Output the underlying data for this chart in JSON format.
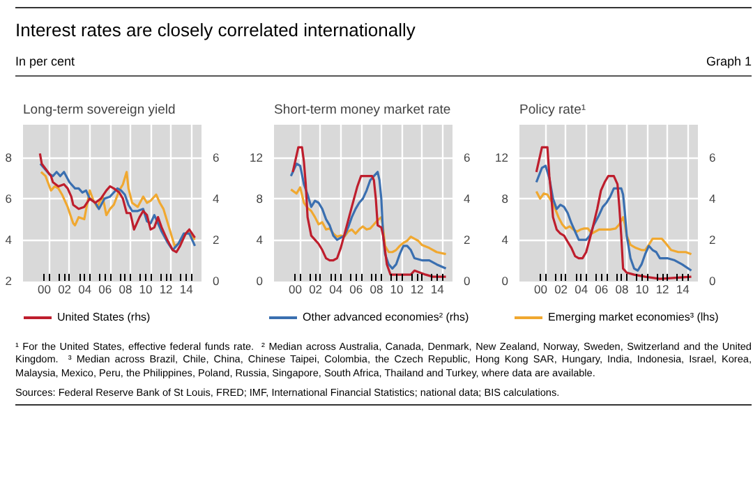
{
  "chart_data": [
    {
      "type": "other",
      "title": "Interest rates are closely correlated internationally",
      "subtitle": "In per cent",
      "annotations": [
        "Graph 1"
      ]
    },
    {
      "type": "line",
      "title": "Long-term sovereign yield",
      "xlim": [
        1997.9,
        2015.5
      ],
      "ylim": [
        2,
        9.6
      ],
      "y2lim": [
        0,
        7.6
      ],
      "yticks": [
        2,
        4,
        6,
        8
      ],
      "y2ticks": [
        0,
        2,
        4,
        6
      ],
      "grid": true,
      "legend": "bottom",
      "xticks": [
        {
          "value": 2000,
          "label": "00"
        },
        {
          "value": 2002,
          "label": "02"
        },
        {
          "value": 2004,
          "label": "04"
        },
        {
          "value": 2006,
          "label": "06"
        },
        {
          "value": 2008,
          "label": "08"
        },
        {
          "value": 2010,
          "label": "10"
        },
        {
          "value": 2012,
          "label": "12"
        },
        {
          "value": 2014,
          "label": "14"
        },
        {
          "value": 2000.5,
          "label": null
        },
        {
          "value": 2001.5,
          "label": null
        },
        {
          "value": 2002.5,
          "label": null
        },
        {
          "value": 2003.5,
          "label": null
        },
        {
          "value": 2004.5,
          "label": null
        },
        {
          "value": 2005.5,
          "label": null
        },
        {
          "value": 2006.5,
          "label": null
        },
        {
          "value": 2007.5,
          "label": null
        },
        {
          "value": 2008.5,
          "label": null
        },
        {
          "value": 2009.5,
          "label": null
        },
        {
          "value": 2010.5,
          "label": null
        },
        {
          "value": 2011.5,
          "label": null
        },
        {
          "value": 2012.5,
          "label": null
        },
        {
          "value": 2013.5,
          "label": null
        },
        {
          "value": 2014.5,
          "label": null
        }
      ],
      "series": [
        {
          "color": "#f0a830",
          "axis": "y",
          "x": [
            1999.68,
            2000.12,
            2000.66,
            2001.03,
            2001.39,
            2001.75,
            2002.3,
            2002.85,
            2003.03,
            2003.39,
            2003.94,
            2004.48,
            2004.85,
            2005.21,
            2005.75,
            2006.12,
            2006.48,
            2006.85,
            2007.39,
            2007.75,
            2008.12,
            2008.3,
            2008.66,
            2009.21,
            2009.75,
            2010.12,
            2010.48,
            2011.03,
            2011.39,
            2011.75,
            2012.3,
            2012.85,
            2013.21,
            2013.57,
            2014.12,
            2014.85
          ],
          "values": [
            7.3,
            7.1,
            6.4,
            6.6,
            6.5,
            6.2,
            5.6,
            4.8,
            4.7,
            5.1,
            5.0,
            6.4,
            5.9,
            5.6,
            6.1,
            5.2,
            5.5,
            5.7,
            6.4,
            6.7,
            7.3,
            6.5,
            5.8,
            5.6,
            6.1,
            5.8,
            5.9,
            6.2,
            5.8,
            5.5,
            4.6,
            3.7,
            3.8,
            4.0,
            4.4,
            4.0
          ]
        },
        {
          "color": "#3a6fb0",
          "axis": "y2",
          "x": [
            1999.61,
            2000.48,
            2000.85,
            2001.21,
            2001.57,
            2001.94,
            2002.48,
            2003.03,
            2003.39,
            2003.75,
            2004.12,
            2004.48,
            2005.03,
            2005.39,
            2005.94,
            2006.48,
            2006.85,
            2007.21,
            2007.57,
            2007.94,
            2008.3,
            2008.66,
            2009.21,
            2009.75,
            2010.12,
            2010.48,
            2010.85,
            2011.21,
            2011.57,
            2012.12,
            2012.66,
            2013.21,
            2013.75,
            2014.3,
            2014.85
          ],
          "values": [
            5.7,
            5.2,
            5.1,
            5.3,
            5.1,
            5.3,
            4.8,
            4.5,
            4.5,
            4.3,
            4.4,
            4.0,
            3.8,
            3.5,
            4.0,
            4.1,
            4.3,
            4.5,
            4.4,
            4.2,
            3.7,
            3.4,
            3.4,
            3.5,
            2.9,
            2.8,
            3.2,
            2.8,
            2.4,
            1.9,
            1.5,
            1.8,
            2.3,
            2.3,
            1.7
          ]
        },
        {
          "name": "United States (rhs)",
          "color": "#be1e2d",
          "axis": "y2",
          "x": [
            1999.57,
            1999.75,
            2000.66,
            2000.85,
            2001.39,
            2001.94,
            2002.3,
            2002.66,
            2002.85,
            2003.39,
            2003.94,
            2004.48,
            2005.03,
            2005.57,
            2006.12,
            2006.48,
            2006.85,
            2007.39,
            2007.75,
            2008.12,
            2008.48,
            2008.85,
            2009.39,
            2009.75,
            2010.12,
            2010.48,
            2010.85,
            2011.21,
            2011.57,
            2012.12,
            2012.66,
            2013.03,
            2013.39,
            2013.94,
            2014.3,
            2014.85
          ],
          "values": [
            6.2,
            5.7,
            5.1,
            4.8,
            4.6,
            4.7,
            4.5,
            4.1,
            3.7,
            3.5,
            3.6,
            4.0,
            3.8,
            4.0,
            4.4,
            4.6,
            4.5,
            4.3,
            4.0,
            3.3,
            3.3,
            2.5,
            3.1,
            3.4,
            3.2,
            2.5,
            2.6,
            3.1,
            2.6,
            2.0,
            1.5,
            1.4,
            1.7,
            2.3,
            2.5,
            2.1
          ]
        }
      ]
    },
    {
      "type": "line",
      "title": "Short-term money market rate",
      "xlim": [
        1997.9,
        2015.5
      ],
      "ylim": [
        0,
        15.2
      ],
      "y2lim": [
        0,
        7.6
      ],
      "yticks": [
        0,
        4,
        8,
        12
      ],
      "y2ticks": [
        0,
        2,
        4,
        6
      ],
      "grid": true,
      "legend": "bottom",
      "xticks": [
        {
          "value": 2000,
          "label": "00"
        },
        {
          "value": 2002,
          "label": "02"
        },
        {
          "value": 2004,
          "label": "04"
        },
        {
          "value": 2006,
          "label": "06"
        },
        {
          "value": 2008,
          "label": "08"
        },
        {
          "value": 2010,
          "label": "10"
        },
        {
          "value": 2012,
          "label": "12"
        },
        {
          "value": 2014,
          "label": "14"
        },
        {
          "value": 2000.5,
          "label": null
        },
        {
          "value": 2001.5,
          "label": null
        },
        {
          "value": 2002.5,
          "label": null
        },
        {
          "value": 2003.5,
          "label": null
        },
        {
          "value": 2004.5,
          "label": null
        },
        {
          "value": 2005.5,
          "label": null
        },
        {
          "value": 2006.5,
          "label": null
        },
        {
          "value": 2007.5,
          "label": null
        },
        {
          "value": 2008.5,
          "label": null
        },
        {
          "value": 2009.5,
          "label": null
        },
        {
          "value": 2010.5,
          "label": null
        },
        {
          "value": 2011.5,
          "label": null
        },
        {
          "value": 2012.5,
          "label": null
        },
        {
          "value": 2013.5,
          "label": null
        },
        {
          "value": 2014.5,
          "label": null
        }
      ],
      "series": [
        {
          "color": "#f0a830",
          "axis": "y",
          "x": [
            1999.57,
            2000.12,
            2000.48,
            2000.85,
            2001.21,
            2001.57,
            2001.94,
            2002.3,
            2002.66,
            2003.03,
            2003.39,
            2003.75,
            2004.12,
            2004.48,
            2004.85,
            2005.21,
            2005.57,
            2005.94,
            2006.3,
            2006.66,
            2007.03,
            2007.39,
            2007.75,
            2008.12,
            2008.48,
            2008.66,
            2008.85,
            2009.21,
            2009.57,
            2009.94,
            2010.3,
            2010.66,
            2011.03,
            2011.39,
            2011.75,
            2012.12,
            2012.48,
            2013.21,
            2013.94,
            2014.85
          ],
          "values": [
            8.9,
            8.5,
            9.1,
            7.6,
            7.1,
            6.8,
            6.2,
            5.5,
            5.7,
            5.0,
            5.1,
            4.6,
            4.3,
            4.4,
            4.3,
            4.8,
            5.0,
            4.6,
            5.0,
            5.3,
            5.0,
            5.1,
            5.5,
            5.9,
            6.2,
            5.1,
            3.4,
            2.8,
            2.8,
            3.0,
            3.4,
            3.7,
            3.9,
            4.3,
            4.1,
            3.9,
            3.5,
            3.2,
            2.8,
            2.6
          ]
        },
        {
          "name": "Other advanced economies² (rhs)",
          "color": "#3a6fb0",
          "axis": "y2",
          "x": [
            1999.57,
            2000.12,
            2000.48,
            2000.85,
            2001.21,
            2001.57,
            2001.94,
            2002.3,
            2002.66,
            2003.03,
            2003.39,
            2003.75,
            2004.12,
            2004.48,
            2004.85,
            2005.21,
            2005.57,
            2005.94,
            2006.3,
            2006.66,
            2007.03,
            2007.39,
            2007.75,
            2008.12,
            2008.3,
            2008.48,
            2008.66,
            2008.85,
            2009.21,
            2009.57,
            2009.94,
            2010.3,
            2010.66,
            2011.03,
            2011.39,
            2011.75,
            2012.48,
            2013.21,
            2013.94,
            2014.85
          ],
          "values": [
            5.1,
            5.7,
            5.6,
            4.7,
            4.2,
            3.6,
            3.9,
            3.8,
            3.5,
            3.0,
            2.7,
            2.2,
            2.0,
            2.1,
            2.2,
            2.6,
            3.1,
            3.5,
            3.8,
            4.0,
            4.4,
            4.9,
            5.1,
            5.3,
            4.9,
            4.0,
            2.2,
            1.3,
            0.8,
            0.6,
            0.8,
            1.3,
            1.7,
            1.7,
            1.5,
            1.1,
            1.0,
            1.0,
            0.8,
            0.6
          ]
        },
        {
          "color": "#be1e2d",
          "axis": "y2",
          "x": [
            1999.75,
            2000.3,
            2000.66,
            2000.85,
            2001.03,
            2001.21,
            2001.57,
            2001.94,
            2002.3,
            2002.66,
            2003.03,
            2003.39,
            2003.75,
            2004.12,
            2004.48,
            2005.03,
            2005.57,
            2006.12,
            2006.48,
            2007.03,
            2007.57,
            2007.75,
            2007.94,
            2008.12,
            2008.48,
            2008.66,
            2009.03,
            2009.39,
            2009.94,
            2010.66,
            2011.39,
            2011.75,
            2012.3,
            2012.85,
            2013.57,
            2014.85
          ],
          "values": [
            5.3,
            6.5,
            6.5,
            5.8,
            4.7,
            3.1,
            2.2,
            2.0,
            1.8,
            1.5,
            1.1,
            1.0,
            1.0,
            1.1,
            1.6,
            2.6,
            3.6,
            4.6,
            5.1,
            5.1,
            5.1,
            4.9,
            4.0,
            2.7,
            2.6,
            2.2,
            0.8,
            0.3,
            0.3,
            0.3,
            0.3,
            0.5,
            0.4,
            0.3,
            0.2,
            0.2
          ]
        }
      ]
    },
    {
      "type": "line",
      "title": "Policy rate¹",
      "xlim": [
        1997.9,
        2015.5
      ],
      "ylim": [
        0,
        15.2
      ],
      "y2lim": [
        0,
        7.6
      ],
      "yticks": [
        0,
        4,
        8,
        12
      ],
      "y2ticks": [
        0,
        2,
        4,
        6
      ],
      "grid": true,
      "legend": "bottom",
      "xticks": [
        {
          "value": 2000,
          "label": "00"
        },
        {
          "value": 2002,
          "label": "02"
        },
        {
          "value": 2004,
          "label": "04"
        },
        {
          "value": 2006,
          "label": "06"
        },
        {
          "value": 2008,
          "label": "08"
        },
        {
          "value": 2010,
          "label": "10"
        },
        {
          "value": 2012,
          "label": "12"
        },
        {
          "value": 2014,
          "label": "14"
        },
        {
          "value": 2000.5,
          "label": null
        },
        {
          "value": 2001.5,
          "label": null
        },
        {
          "value": 2002.5,
          "label": null
        },
        {
          "value": 2003.5,
          "label": null
        },
        {
          "value": 2004.5,
          "label": null
        },
        {
          "value": 2005.5,
          "label": null
        },
        {
          "value": 2006.5,
          "label": null
        },
        {
          "value": 2007.5,
          "label": null
        },
        {
          "value": 2008.5,
          "label": null
        },
        {
          "value": 2009.5,
          "label": null
        },
        {
          "value": 2010.5,
          "label": null
        },
        {
          "value": 2011.5,
          "label": null
        },
        {
          "value": 2012.5,
          "label": null
        },
        {
          "value": 2013.5,
          "label": null
        },
        {
          "value": 2014.5,
          "label": null
        }
      ],
      "series": [
        {
          "name": "Emerging market economies³ (lhs)",
          "color": "#f0a830",
          "axis": "y",
          "x": [
            1999.57,
            1999.94,
            2000.3,
            2000.66,
            2001.03,
            2001.39,
            2001.75,
            2002.12,
            2002.48,
            2002.85,
            2003.21,
            2003.57,
            2003.94,
            2004.3,
            2004.66,
            2005.03,
            2005.39,
            2005.75,
            2006.3,
            2006.85,
            2007.39,
            2007.75,
            2008.12,
            2008.3,
            2008.48,
            2008.85,
            2009.39,
            2009.94,
            2010.3,
            2010.66,
            2011.03,
            2011.57,
            2011.94,
            2012.3,
            2012.85,
            2013.57,
            2014.3,
            2014.85
          ],
          "values": [
            8.7,
            8.0,
            8.5,
            8.4,
            7.8,
            7.1,
            6.2,
            5.5,
            5.1,
            5.3,
            5.0,
            4.8,
            5.0,
            5.1,
            5.1,
            4.6,
            4.8,
            5.0,
            5.0,
            5.0,
            5.1,
            5.5,
            6.2,
            5.5,
            4.4,
            3.5,
            3.2,
            3.0,
            3.0,
            3.5,
            4.1,
            4.1,
            4.1,
            3.7,
            3.0,
            2.8,
            2.8,
            2.6
          ]
        },
        {
          "color": "#3a6fb0",
          "axis": "y2",
          "x": [
            1999.57,
            2000.12,
            2000.48,
            2000.85,
            2001.21,
            2001.57,
            2001.94,
            2002.3,
            2002.66,
            2003.03,
            2003.39,
            2003.75,
            2004.12,
            2004.48,
            2004.85,
            2005.21,
            2005.75,
            2006.12,
            2006.48,
            2006.85,
            2007.21,
            2007.57,
            2007.94,
            2008.12,
            2008.3,
            2008.48,
            2008.85,
            2009.21,
            2009.57,
            2009.94,
            2010.3,
            2010.66,
            2011.03,
            2011.39,
            2011.75,
            2012.48,
            2013.21,
            2013.94,
            2014.85
          ],
          "values": [
            4.8,
            5.5,
            5.6,
            5.0,
            4.0,
            3.5,
            3.7,
            3.6,
            3.3,
            2.8,
            2.4,
            2.0,
            2.0,
            2.0,
            2.2,
            2.7,
            3.2,
            3.6,
            3.8,
            4.1,
            4.5,
            4.5,
            4.5,
            4.2,
            3.3,
            2.2,
            1.1,
            0.6,
            0.5,
            0.8,
            1.3,
            1.7,
            1.5,
            1.4,
            1.1,
            1.1,
            1.0,
            0.8,
            0.5
          ]
        },
        {
          "color": "#be1e2d",
          "axis": "y2",
          "x": [
            1999.57,
            2000.12,
            2000.66,
            2000.85,
            2001.03,
            2001.21,
            2001.57,
            2001.94,
            2002.3,
            2002.66,
            2003.03,
            2003.39,
            2003.75,
            2004.12,
            2004.48,
            2005.03,
            2005.57,
            2005.94,
            2006.3,
            2006.66,
            2007.21,
            2007.57,
            2007.75,
            2007.94,
            2008.12,
            2008.48,
            2009.21,
            2010.3,
            2011.75,
            2014.85
          ],
          "values": [
            5.3,
            6.5,
            6.5,
            5.1,
            4.2,
            3.1,
            2.5,
            2.3,
            2.2,
            1.9,
            1.6,
            1.2,
            1.1,
            1.1,
            1.4,
            2.4,
            3.5,
            4.4,
            4.8,
            5.1,
            5.1,
            4.7,
            3.6,
            2.2,
            0.6,
            0.4,
            0.3,
            0.2,
            0.1,
            0.2
          ]
        }
      ]
    },
    {
      "type": "other",
      "annotations": [
        "¹ For the United States, effective federal funds rate.",
        "² Median across Australia, Canada, Denmark, New Zealand, Norway, Sweden, Switzerland and the United Kingdom.",
        "³ Median across Brazil, Chile, China, Chinese Taipei, Colombia, the Czech Republic, Hong Kong SAR, Hungary, India, Indonesia, Israel, Korea, Malaysia, Mexico, Peru, the Philippines, Poland, Russia, Singapore, South Africa, Thailand and Turkey, where data are available.",
        "Sources: Federal Reserve Bank of St Louis, FRED; IMF, International Financial Statistics; national data; BIS calculations."
      ]
    }
  ]
}
